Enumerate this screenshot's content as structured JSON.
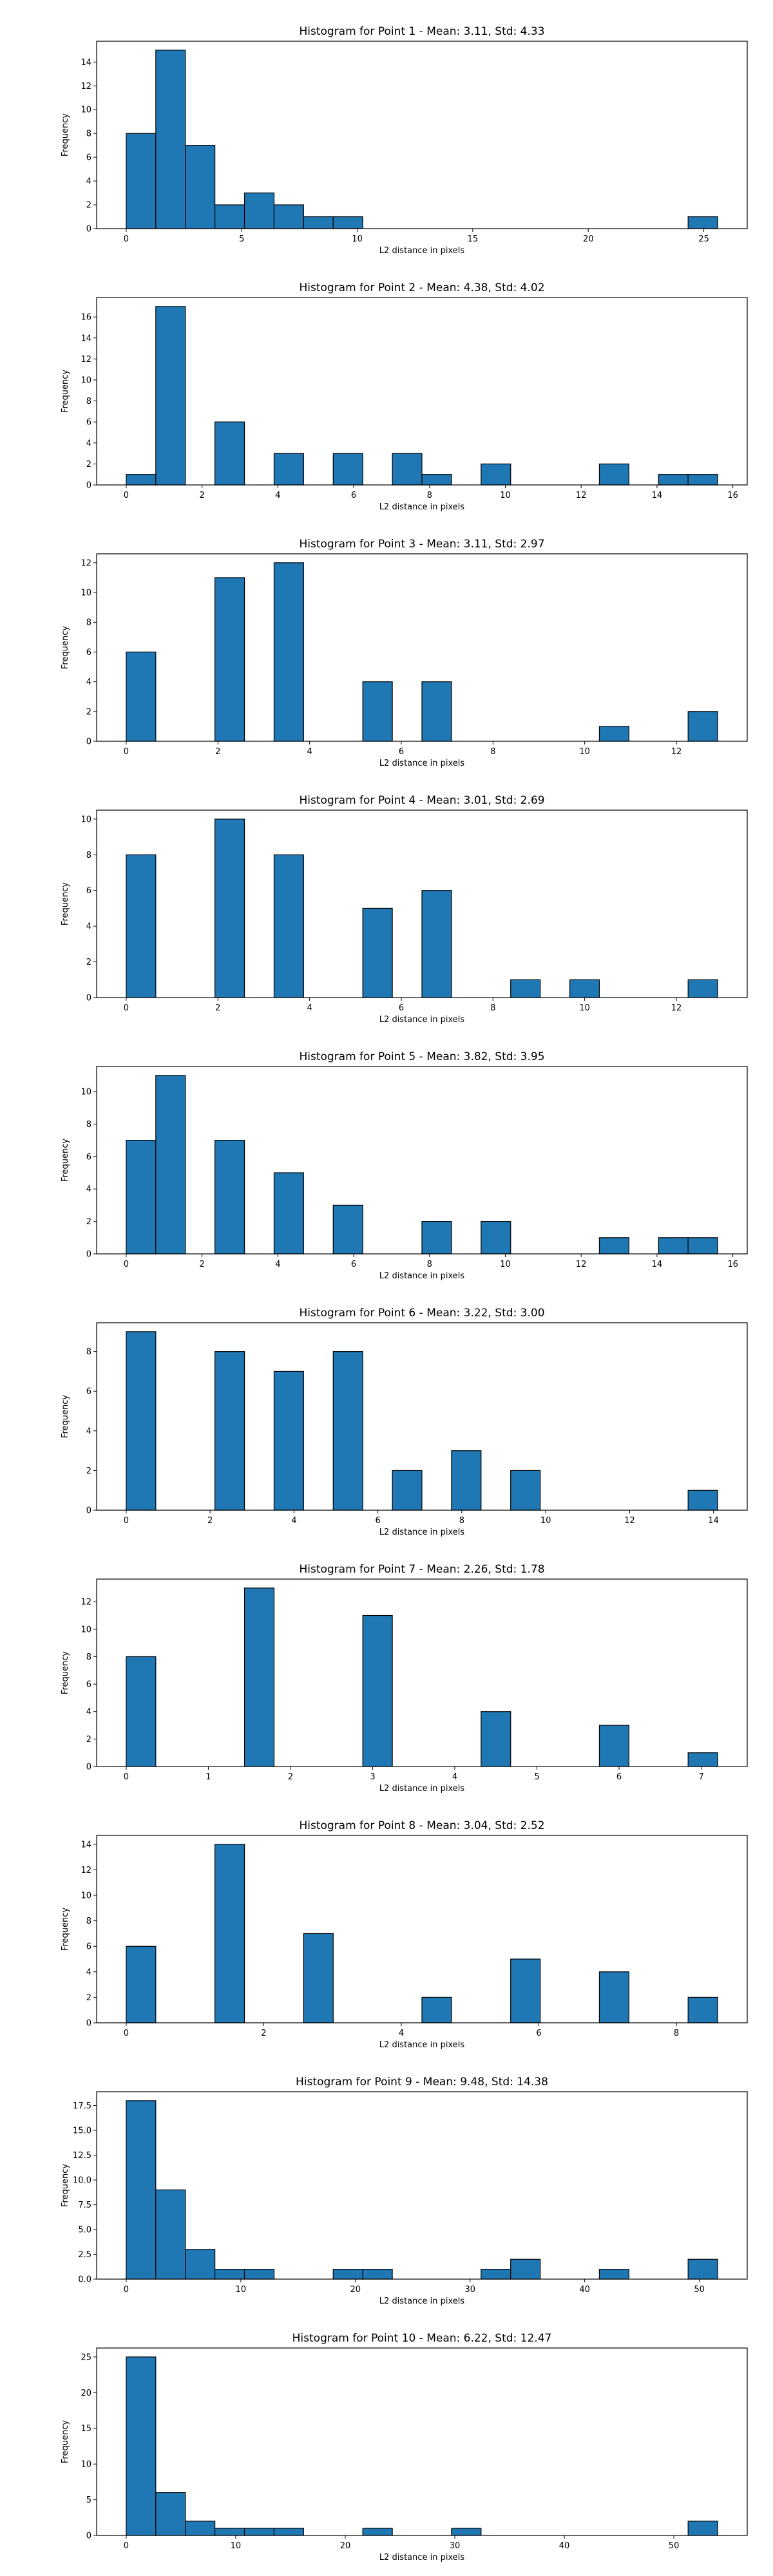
{
  "chart_data": [
    {
      "type": "bar",
      "title": "Histogram for Point 1 - Mean: 3.11, Std: 4.33",
      "xlabel": "L2 distance in pixels",
      "ylabel": "Frequency",
      "bin_range": [
        0,
        25.6
      ],
      "bins": 20,
      "values": [
        8,
        15,
        7,
        2,
        3,
        2,
        1,
        1,
        0,
        0,
        0,
        0,
        0,
        0,
        0,
        0,
        0,
        0,
        0,
        1
      ],
      "xlim": [
        -1.28,
        26.88
      ],
      "ylim": [
        0,
        15.75
      ],
      "xticks": [
        0,
        5,
        10,
        15,
        20,
        25
      ],
      "yticks": [
        0,
        2,
        4,
        6,
        8,
        10,
        12,
        14
      ],
      "grid": false
    },
    {
      "type": "bar",
      "title": "Histogram for Point 2 - Mean: 4.38, Std: 4.02",
      "xlabel": "L2 distance in pixels",
      "ylabel": "Frequency",
      "bin_range": [
        0,
        15.6
      ],
      "bins": 20,
      "values": [
        1,
        17,
        0,
        6,
        0,
        3,
        0,
        3,
        0,
        3,
        1,
        0,
        2,
        0,
        0,
        0,
        2,
        0,
        1,
        1
      ],
      "xlim": [
        -0.78,
        16.38
      ],
      "ylim": [
        0,
        17.85
      ],
      "xticks": [
        0,
        2,
        4,
        6,
        8,
        10,
        12,
        14,
        16
      ],
      "yticks": [
        0,
        2,
        4,
        6,
        8,
        10,
        12,
        14,
        16
      ],
      "grid": false
    },
    {
      "type": "bar",
      "title": "Histogram for Point 3 - Mean: 3.11, Std: 2.97",
      "xlabel": "L2 distance in pixels",
      "ylabel": "Frequency",
      "bin_range": [
        0,
        12.9
      ],
      "bins": 20,
      "values": [
        6,
        0,
        0,
        11,
        0,
        12,
        0,
        0,
        4,
        0,
        4,
        0,
        0,
        0,
        0,
        0,
        1,
        0,
        0,
        2
      ],
      "xlim": [
        -0.645,
        13.545
      ],
      "ylim": [
        0,
        12.6
      ],
      "xticks": [
        0,
        2,
        4,
        6,
        8,
        10,
        12
      ],
      "yticks": [
        0,
        2,
        4,
        6,
        8,
        10,
        12
      ],
      "grid": false
    },
    {
      "type": "bar",
      "title": "Histogram for Point 4 - Mean: 3.01, Std: 2.69",
      "xlabel": "L2 distance in pixels",
      "ylabel": "Frequency",
      "bin_range": [
        0,
        12.9
      ],
      "bins": 20,
      "values": [
        8,
        0,
        0,
        10,
        0,
        8,
        0,
        0,
        5,
        0,
        6,
        0,
        0,
        1,
        0,
        1,
        0,
        0,
        0,
        1
      ],
      "xlim": [
        -0.645,
        13.545
      ],
      "ylim": [
        0,
        10.5
      ],
      "xticks": [
        0,
        2,
        4,
        6,
        8,
        10,
        12
      ],
      "yticks": [
        0,
        2,
        4,
        6,
        8,
        10
      ],
      "grid": false
    },
    {
      "type": "bar",
      "title": "Histogram for Point 5 - Mean: 3.82, Std: 3.95",
      "xlabel": "L2 distance in pixels",
      "ylabel": "Frequency",
      "bin_range": [
        0,
        15.6
      ],
      "bins": 20,
      "values": [
        7,
        11,
        0,
        7,
        0,
        5,
        0,
        3,
        0,
        0,
        2,
        0,
        2,
        0,
        0,
        0,
        1,
        0,
        1,
        1
      ],
      "xlim": [
        -0.78,
        16.38
      ],
      "ylim": [
        0,
        11.55
      ],
      "xticks": [
        0,
        2,
        4,
        6,
        8,
        10,
        12,
        14,
        16
      ],
      "yticks": [
        0,
        2,
        4,
        6,
        8,
        10
      ],
      "grid": false
    },
    {
      "type": "bar",
      "title": "Histogram for Point 6 - Mean: 3.22, Std: 3.00",
      "xlabel": "L2 distance in pixels",
      "ylabel": "Frequency",
      "bin_range": [
        0,
        14.1
      ],
      "bins": 20,
      "values": [
        9,
        0,
        0,
        8,
        0,
        7,
        0,
        8,
        0,
        2,
        0,
        3,
        0,
        2,
        0,
        0,
        0,
        0,
        0,
        1
      ],
      "xlim": [
        -0.705,
        14.805
      ],
      "ylim": [
        0,
        9.45
      ],
      "xticks": [
        0,
        2,
        4,
        6,
        8,
        10,
        12,
        14
      ],
      "yticks": [
        0,
        2,
        4,
        6,
        8
      ],
      "grid": false
    },
    {
      "type": "bar",
      "title": "Histogram for Point 7 - Mean: 2.26, Std: 1.78",
      "xlabel": "L2 distance in pixels",
      "ylabel": "Frequency",
      "bin_range": [
        0,
        7.2
      ],
      "bins": 20,
      "values": [
        8,
        0,
        0,
        0,
        13,
        0,
        0,
        0,
        11,
        0,
        0,
        0,
        4,
        0,
        0,
        0,
        3,
        0,
        0,
        1
      ],
      "xlim": [
        -0.36,
        7.56
      ],
      "ylim": [
        0,
        13.65
      ],
      "xticks": [
        0,
        1,
        2,
        3,
        4,
        5,
        6,
        7
      ],
      "yticks": [
        0,
        2,
        4,
        6,
        8,
        10,
        12
      ],
      "grid": false
    },
    {
      "type": "bar",
      "title": "Histogram for Point 8 - Mean: 3.04, Std: 2.52",
      "xlabel": "L2 distance in pixels",
      "ylabel": "Frequency",
      "bin_range": [
        0,
        8.6
      ],
      "bins": 20,
      "values": [
        6,
        0,
        0,
        14,
        0,
        0,
        7,
        0,
        0,
        0,
        2,
        0,
        0,
        5,
        0,
        0,
        4,
        0,
        0,
        2
      ],
      "xlim": [
        -0.43,
        9.03
      ],
      "ylim": [
        0,
        14.7
      ],
      "xticks": [
        0,
        2,
        4,
        6,
        8
      ],
      "yticks": [
        0,
        2,
        4,
        6,
        8,
        10,
        12,
        14
      ],
      "grid": false
    },
    {
      "type": "bar",
      "title": "Histogram for Point 9 - Mean: 9.48, Std: 14.38",
      "xlabel": "L2 distance in pixels",
      "ylabel": "Frequency",
      "bin_range": [
        0,
        51.6
      ],
      "bins": 20,
      "values": [
        18,
        9,
        3,
        1,
        1,
        0,
        0,
        1,
        1,
        0,
        0,
        0,
        1,
        2,
        0,
        0,
        1,
        0,
        0,
        2
      ],
      "xlim": [
        -2.58,
        54.18
      ],
      "ylim": [
        0,
        18.9
      ],
      "xticks": [
        0,
        10,
        20,
        30,
        40,
        50
      ],
      "yticks": [
        0.0,
        2.5,
        5.0,
        7.5,
        10.0,
        12.5,
        15.0,
        17.5
      ],
      "ytick_labels": [
        "0.0",
        "2.5",
        "5.0",
        "7.5",
        "10.0",
        "12.5",
        "15.0",
        "17.5"
      ],
      "grid": false
    },
    {
      "type": "bar",
      "title": "Histogram for Point 10 - Mean: 6.22, Std: 12.47",
      "xlabel": "L2 distance in pixels",
      "ylabel": "Frequency",
      "bin_range": [
        0,
        54.0
      ],
      "bins": 20,
      "values": [
        25,
        6,
        2,
        1,
        1,
        1,
        0,
        0,
        1,
        0,
        0,
        1,
        0,
        0,
        0,
        0,
        0,
        0,
        0,
        2
      ],
      "xlim": [
        -2.7,
        56.7
      ],
      "ylim": [
        0,
        26.25
      ],
      "xticks": [
        0,
        10,
        20,
        30,
        40,
        50
      ],
      "yticks": [
        0,
        5,
        10,
        15,
        20,
        25
      ],
      "grid": false
    }
  ],
  "colors": {
    "bar_fill": "#1f77b4",
    "bar_edge": "#000000",
    "axes": "#000000",
    "background": "#ffffff"
  }
}
